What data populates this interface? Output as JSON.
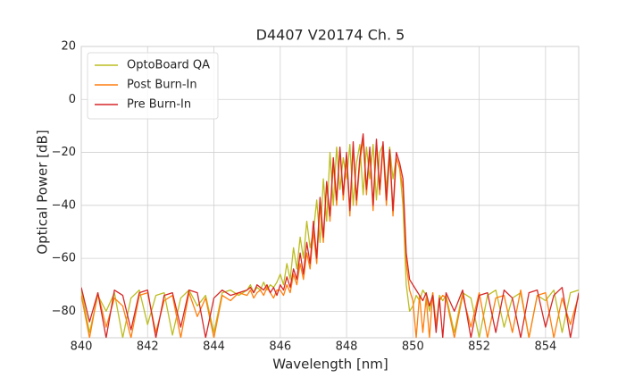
{
  "chart_data": {
    "type": "line",
    "title": "D4407 V20174 Ch. 5",
    "xlabel": "Wavelength [nm]",
    "ylabel": "Optical Power [dB]",
    "x": [
      840,
      840.25,
      840.5,
      840.75,
      841,
      841.25,
      841.5,
      841.75,
      842,
      842.25,
      842.5,
      842.75,
      843,
      843.25,
      843.5,
      843.75,
      844,
      844.25,
      844.5,
      844.75,
      845,
      845.1,
      845.2,
      845.3,
      845.4,
      845.5,
      845.6,
      845.7,
      845.8,
      845.9,
      846,
      846.1,
      846.2,
      846.3,
      846.4,
      846.5,
      846.6,
      846.7,
      846.8,
      846.9,
      847,
      847.1,
      847.2,
      847.3,
      847.4,
      847.5,
      847.6,
      847.7,
      847.8,
      847.9,
      848,
      848.1,
      848.2,
      848.3,
      848.4,
      848.5,
      848.6,
      848.7,
      848.8,
      848.9,
      849,
      849.1,
      849.2,
      849.3,
      849.4,
      849.5,
      849.6,
      849.7,
      849.8,
      849.9,
      850,
      850.1,
      850.2,
      850.3,
      850.4,
      850.5,
      850.6,
      850.7,
      850.8,
      850.9,
      851,
      851.25,
      851.5,
      851.75,
      852,
      852.25,
      852.5,
      852.75,
      853,
      853.25,
      853.5,
      853.75,
      854,
      854.25,
      854.5,
      854.75,
      855
    ],
    "series": [
      {
        "name": "OptoBoard QA",
        "color": "#bcbd22",
        "values": [
          -72,
          -88,
          -74,
          -80,
          -73,
          -90,
          -75,
          -72,
          -85,
          -74,
          -73,
          -89,
          -75,
          -72,
          -78,
          -74,
          -88,
          -73,
          -72,
          -74,
          -72,
          -70,
          -73,
          -71,
          -72,
          -69,
          -72,
          -70,
          -71,
          -69,
          -66,
          -70,
          -62,
          -68,
          -56,
          -64,
          -52,
          -60,
          -46,
          -56,
          -50,
          -38,
          -54,
          -30,
          -46,
          -20,
          -40,
          -18,
          -34,
          -22,
          -30,
          -17,
          -40,
          -24,
          -17,
          -36,
          -18,
          -30,
          -17,
          -38,
          -20,
          -17,
          -34,
          -18,
          -30,
          -22,
          -26,
          -40,
          -70,
          -80,
          -78,
          -74,
          -76,
          -72,
          -74,
          -80,
          -73,
          -86,
          -74,
          -76,
          -74,
          -88,
          -73,
          -75,
          -90,
          -74,
          -72,
          -86,
          -75,
          -73,
          -90,
          -74,
          -76,
          -72,
          -88,
          -73,
          -72
        ]
      },
      {
        "name": "Post Burn-In",
        "color": "#ff7f0e",
        "values": [
          -74,
          -90,
          -73,
          -86,
          -75,
          -78,
          -90,
          -74,
          -73,
          -88,
          -76,
          -74,
          -90,
          -73,
          -82,
          -75,
          -90,
          -74,
          -76,
          -73,
          -74,
          -72,
          -75,
          -73,
          -72,
          -74,
          -71,
          -73,
          -75,
          -72,
          -72,
          -74,
          -70,
          -73,
          -66,
          -70,
          -62,
          -68,
          -58,
          -64,
          -50,
          -62,
          -40,
          -54,
          -32,
          -46,
          -24,
          -40,
          -19,
          -38,
          -22,
          -44,
          -18,
          -40,
          -24,
          -15,
          -36,
          -20,
          -42,
          -17,
          -36,
          -18,
          -40,
          -21,
          -44,
          -22,
          -26,
          -34,
          -62,
          -72,
          -76,
          -90,
          -74,
          -88,
          -75,
          -90,
          -73,
          -85,
          -76,
          -74,
          -75,
          -90,
          -74,
          -86,
          -73,
          -90,
          -75,
          -74,
          -88,
          -72,
          -90,
          -74,
          -73,
          -90,
          -75,
          -85,
          -74
        ]
      },
      {
        "name": "Pre Burn-In",
        "color": "#d62728",
        "values": [
          -71,
          -84,
          -73,
          -90,
          -72,
          -74,
          -87,
          -73,
          -72,
          -90,
          -74,
          -73,
          -86,
          -72,
          -73,
          -90,
          -75,
          -72,
          -74,
          -73,
          -72,
          -71,
          -73,
          -70,
          -71,
          -72,
          -70,
          -73,
          -71,
          -74,
          -70,
          -72,
          -67,
          -71,
          -64,
          -68,
          -58,
          -66,
          -54,
          -62,
          -46,
          -60,
          -37,
          -52,
          -31,
          -44,
          -22,
          -38,
          -18,
          -36,
          -20,
          -42,
          -16,
          -38,
          -22,
          -13,
          -34,
          -18,
          -40,
          -15,
          -34,
          -16,
          -38,
          -19,
          -42,
          -20,
          -24,
          -30,
          -58,
          -68,
          -70,
          -72,
          -74,
          -76,
          -73,
          -78,
          -74,
          -88,
          -75,
          -90,
          -73,
          -80,
          -72,
          -90,
          -74,
          -73,
          -88,
          -72,
          -75,
          -90,
          -73,
          -72,
          -86,
          -74,
          -71,
          -90,
          -73
        ]
      }
    ],
    "xlim": [
      840,
      855
    ],
    "xticks": [
      840,
      842,
      844,
      846,
      848,
      850,
      852,
      854
    ],
    "ylim": [
      -90,
      20
    ],
    "yticks": [
      {
        "value": -80,
        "label": "−80"
      },
      {
        "value": -60,
        "label": "−60"
      },
      {
        "value": -40,
        "label": "−40"
      },
      {
        "value": -20,
        "label": "−20"
      },
      0,
      20
    ],
    "grid": true,
    "legend": "upper left"
  }
}
